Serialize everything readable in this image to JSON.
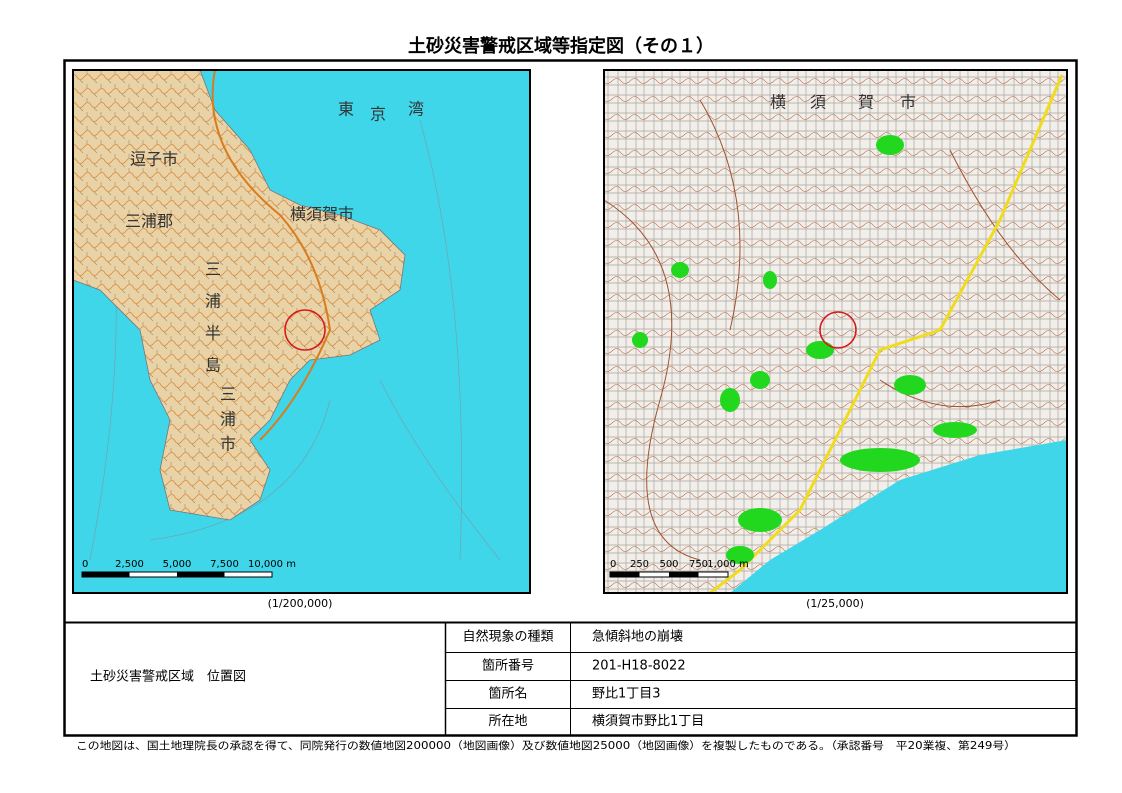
{
  "title": "土砂災害警戒区域等指定図（その１）",
  "maps": [
    {
      "scale": "(1/200,000)",
      "scale_bar": [
        "0",
        "2,500",
        "5,000",
        "7,500",
        "10,000 m"
      ],
      "labels": [
        "逗子市",
        "横須賀市",
        "三浦郡",
        "東",
        "京",
        "湾",
        "三",
        "浦",
        "半",
        "島",
        "三",
        "浦",
        "市"
      ]
    },
    {
      "scale": "(1/25,000)",
      "scale_bar": [
        "0",
        "250",
        "500",
        "750",
        "1,000 m"
      ],
      "labels": [
        "横",
        "須",
        "賀",
        "市"
      ]
    }
  ],
  "panel": {
    "title": "土砂災害警戒区域　位置図",
    "rows": [
      [
        "自然現象の種類",
        "急傾斜地の崩壊"
      ],
      [
        "箇所番号",
        "201-H18-8022"
      ],
      [
        "箇所名",
        "野比1丁目3"
      ],
      [
        "所在地",
        "横須賀市野比1丁目"
      ]
    ]
  },
  "footer": "この地図は、国土地理院長の承認を得て、同院発行の数値地図200000（地図画像）及び数値地図25000（地図画像）を複製したものである。（承認番号　平20業複、第249号）"
}
